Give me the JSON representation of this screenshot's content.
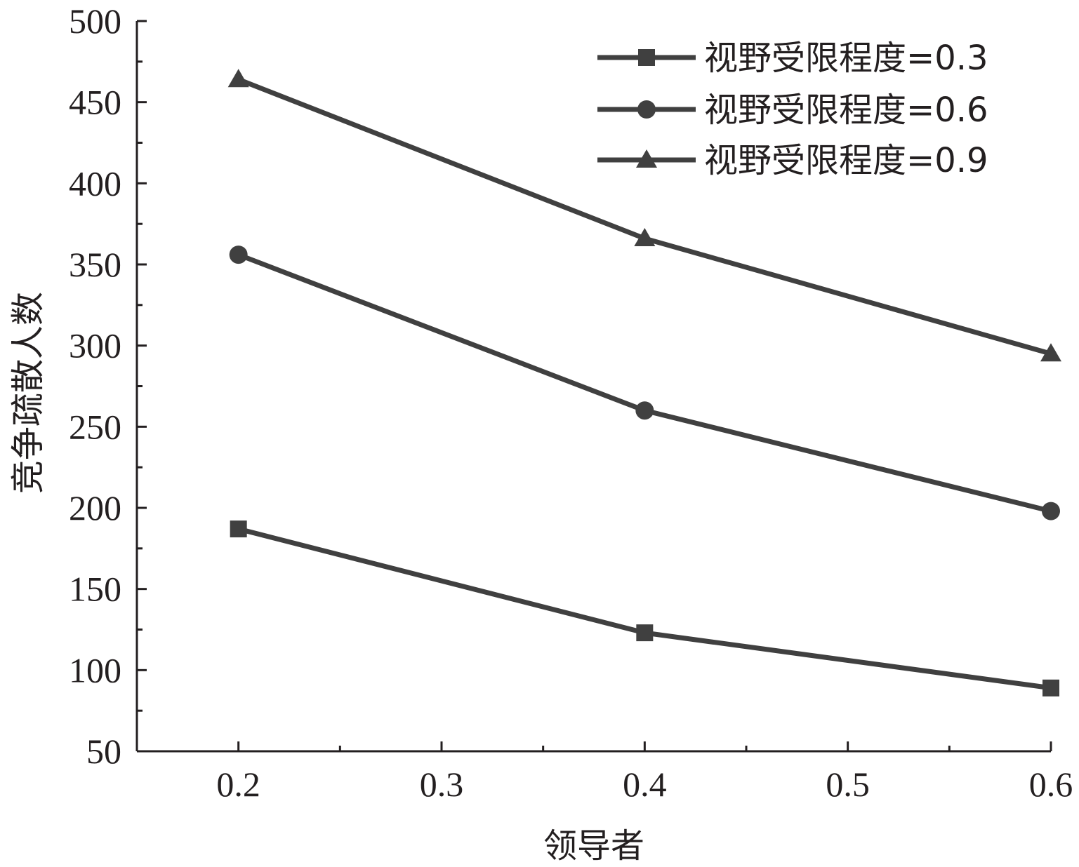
{
  "chart_data": {
    "type": "line",
    "title": "",
    "xlabel": "领导者",
    "ylabel": "竞争疏散人数",
    "x": [
      0.2,
      0.4,
      0.6
    ],
    "xlim": [
      0.15,
      0.6
    ],
    "ylim": [
      50,
      500
    ],
    "xticks": [
      "0.2",
      "0.3",
      "0.4",
      "0.5",
      "0.6"
    ],
    "yticks": [
      "50",
      "100",
      "150",
      "200",
      "250",
      "300",
      "350",
      "400",
      "450",
      "500"
    ],
    "grid": false,
    "legend_position": "top-right",
    "line_color": "#404040",
    "series": [
      {
        "name": "视野受限程度=0.3",
        "marker": "square",
        "values": [
          187,
          123,
          89
        ]
      },
      {
        "name": "视野受限程度=0.6",
        "marker": "circle",
        "values": [
          356,
          260,
          198
        ]
      },
      {
        "name": "视野受限程度=0.9",
        "marker": "triangle",
        "values": [
          464,
          366,
          295
        ]
      }
    ]
  }
}
